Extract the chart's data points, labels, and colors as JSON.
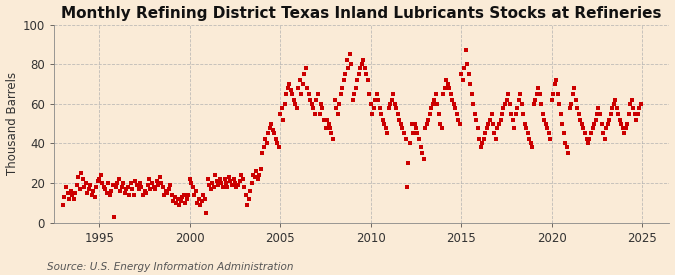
{
  "title": "Monthly Refining District Texas Inland Lubricants Stocks at Refineries",
  "ylabel": "Thousand Barrels",
  "source": "Source: U.S. Energy Information Administration",
  "background_color": "#faebd7",
  "scatter_color": "#cc0000",
  "xlim": [
    1992.5,
    2026.5
  ],
  "ylim": [
    0,
    100
  ],
  "yticks": [
    0,
    20,
    40,
    60,
    80,
    100
  ],
  "xticks": [
    1995,
    2000,
    2005,
    2010,
    2015,
    2020,
    2025
  ],
  "title_fontsize": 11,
  "label_fontsize": 8.5,
  "source_fontsize": 7.5,
  "marker_size": 12,
  "data": {
    "x": [
      1993.0,
      1993.08,
      1993.17,
      1993.25,
      1993.33,
      1993.42,
      1993.5,
      1993.58,
      1993.67,
      1993.75,
      1993.83,
      1993.92,
      1994.0,
      1994.08,
      1994.17,
      1994.25,
      1994.33,
      1994.42,
      1994.5,
      1994.58,
      1994.67,
      1994.75,
      1994.83,
      1994.92,
      1995.0,
      1995.08,
      1995.17,
      1995.25,
      1995.33,
      1995.42,
      1995.5,
      1995.58,
      1995.67,
      1995.75,
      1995.83,
      1995.92,
      1996.0,
      1996.08,
      1996.17,
      1996.25,
      1996.33,
      1996.42,
      1996.5,
      1996.58,
      1996.67,
      1996.75,
      1996.83,
      1996.92,
      1997.0,
      1997.08,
      1997.17,
      1997.25,
      1997.33,
      1997.42,
      1997.5,
      1997.58,
      1997.67,
      1997.75,
      1997.83,
      1997.92,
      1998.0,
      1998.08,
      1998.17,
      1998.25,
      1998.33,
      1998.42,
      1998.5,
      1998.58,
      1998.67,
      1998.75,
      1998.83,
      1998.92,
      1999.0,
      1999.08,
      1999.17,
      1999.25,
      1999.33,
      1999.42,
      1999.5,
      1999.58,
      1999.67,
      1999.75,
      1999.83,
      1999.92,
      2000.0,
      2000.08,
      2000.17,
      2000.25,
      2000.33,
      2000.42,
      2000.5,
      2000.58,
      2000.67,
      2000.75,
      2000.83,
      2000.92,
      2001.0,
      2001.08,
      2001.17,
      2001.25,
      2001.33,
      2001.42,
      2001.5,
      2001.58,
      2001.67,
      2001.75,
      2001.83,
      2001.92,
      2002.0,
      2002.08,
      2002.17,
      2002.25,
      2002.33,
      2002.42,
      2002.5,
      2002.58,
      2002.67,
      2002.75,
      2002.83,
      2002.92,
      2003.0,
      2003.08,
      2003.17,
      2003.25,
      2003.33,
      2003.42,
      2003.5,
      2003.58,
      2003.67,
      2003.75,
      2003.83,
      2003.92,
      2004.0,
      2004.08,
      2004.17,
      2004.25,
      2004.33,
      2004.42,
      2004.5,
      2004.58,
      2004.67,
      2004.75,
      2004.83,
      2004.92,
      2005.0,
      2005.08,
      2005.17,
      2005.25,
      2005.33,
      2005.42,
      2005.5,
      2005.58,
      2005.67,
      2005.75,
      2005.83,
      2005.92,
      2006.0,
      2006.08,
      2006.17,
      2006.25,
      2006.33,
      2006.42,
      2006.5,
      2006.58,
      2006.67,
      2006.75,
      2006.83,
      2006.92,
      2007.0,
      2007.08,
      2007.17,
      2007.25,
      2007.33,
      2007.42,
      2007.5,
      2007.58,
      2007.67,
      2007.75,
      2007.83,
      2007.92,
      2008.0,
      2008.08,
      2008.17,
      2008.25,
      2008.33,
      2008.42,
      2008.5,
      2008.58,
      2008.67,
      2008.75,
      2008.83,
      2008.92,
      2009.0,
      2009.08,
      2009.17,
      2009.25,
      2009.33,
      2009.42,
      2009.5,
      2009.58,
      2009.67,
      2009.75,
      2009.83,
      2009.92,
      2010.0,
      2010.08,
      2010.17,
      2010.25,
      2010.33,
      2010.42,
      2010.5,
      2010.58,
      2010.67,
      2010.75,
      2010.83,
      2010.92,
      2011.0,
      2011.08,
      2011.17,
      2011.25,
      2011.33,
      2011.42,
      2011.5,
      2011.58,
      2011.67,
      2011.75,
      2011.83,
      2011.92,
      2012.0,
      2012.08,
      2012.17,
      2012.25,
      2012.33,
      2012.42,
      2012.5,
      2012.58,
      2012.67,
      2012.75,
      2012.83,
      2012.92,
      2013.0,
      2013.08,
      2013.17,
      2013.25,
      2013.33,
      2013.42,
      2013.5,
      2013.58,
      2013.67,
      2013.75,
      2013.83,
      2013.92,
      2014.0,
      2014.08,
      2014.17,
      2014.25,
      2014.33,
      2014.42,
      2014.5,
      2014.58,
      2014.67,
      2014.75,
      2014.83,
      2014.92,
      2015.0,
      2015.08,
      2015.17,
      2015.25,
      2015.33,
      2015.42,
      2015.5,
      2015.58,
      2015.67,
      2015.75,
      2015.83,
      2015.92,
      2016.0,
      2016.08,
      2016.17,
      2016.25,
      2016.33,
      2016.42,
      2016.5,
      2016.58,
      2016.67,
      2016.75,
      2016.83,
      2016.92,
      2017.0,
      2017.08,
      2017.17,
      2017.25,
      2017.33,
      2017.42,
      2017.5,
      2017.58,
      2017.67,
      2017.75,
      2017.83,
      2017.92,
      2018.0,
      2018.08,
      2018.17,
      2018.25,
      2018.33,
      2018.42,
      2018.5,
      2018.58,
      2018.67,
      2018.75,
      2018.83,
      2018.92,
      2019.0,
      2019.08,
      2019.17,
      2019.25,
      2019.33,
      2019.42,
      2019.5,
      2019.58,
      2019.67,
      2019.75,
      2019.83,
      2019.92,
      2020.0,
      2020.08,
      2020.17,
      2020.25,
      2020.33,
      2020.42,
      2020.5,
      2020.58,
      2020.67,
      2020.75,
      2020.83,
      2020.92,
      2021.0,
      2021.08,
      2021.17,
      2021.25,
      2021.33,
      2021.42,
      2021.5,
      2021.58,
      2021.67,
      2021.75,
      2021.83,
      2021.92,
      2022.0,
      2022.08,
      2022.17,
      2022.25,
      2022.33,
      2022.42,
      2022.5,
      2022.58,
      2022.67,
      2022.75,
      2022.83,
      2022.92,
      2023.0,
      2023.08,
      2023.17,
      2023.25,
      2023.33,
      2023.42,
      2023.5,
      2023.58,
      2023.67,
      2023.75,
      2023.83,
      2023.92,
      2024.0,
      2024.08,
      2024.17,
      2024.25,
      2024.33,
      2024.42,
      2024.5,
      2024.58,
      2024.67,
      2024.75,
      2024.83,
      2024.92
    ],
    "y": [
      9,
      13,
      18,
      15,
      12,
      16,
      14,
      12,
      15,
      19,
      23,
      17,
      25,
      22,
      18,
      20,
      15,
      17,
      19,
      14,
      16,
      13,
      18,
      21,
      22,
      24,
      20,
      18,
      17,
      15,
      20,
      14,
      16,
      19,
      3,
      18,
      20,
      22,
      16,
      18,
      20,
      15,
      17,
      18,
      14,
      20,
      17,
      14,
      21,
      19,
      17,
      20,
      18,
      14,
      16,
      15,
      19,
      22,
      17,
      20,
      18,
      17,
      21,
      19,
      23,
      20,
      18,
      14,
      16,
      15,
      17,
      19,
      14,
      11,
      13,
      10,
      12,
      9,
      11,
      13,
      14,
      10,
      12,
      14,
      22,
      20,
      18,
      14,
      16,
      10,
      12,
      9,
      11,
      14,
      12,
      5,
      22,
      19,
      17,
      20,
      18,
      24,
      21,
      19,
      22,
      20,
      18,
      22,
      20,
      18,
      23,
      21,
      19,
      22,
      20,
      18,
      19,
      21,
      24,
      22,
      18,
      14,
      9,
      12,
      16,
      20,
      24,
      23,
      26,
      22,
      24,
      27,
      35,
      38,
      42,
      40,
      45,
      48,
      50,
      47,
      45,
      42,
      40,
      38,
      55,
      58,
      52,
      60,
      65,
      68,
      70,
      67,
      65,
      62,
      60,
      58,
      68,
      72,
      65,
      70,
      75,
      78,
      68,
      65,
      62,
      60,
      58,
      55,
      62,
      65,
      55,
      60,
      58,
      52,
      48,
      52,
      50,
      48,
      45,
      42,
      62,
      58,
      55,
      60,
      65,
      68,
      72,
      75,
      82,
      78,
      85,
      80,
      62,
      65,
      68,
      72,
      75,
      78,
      80,
      82,
      78,
      75,
      72,
      65,
      60,
      55,
      58,
      62,
      65,
      62,
      58,
      55,
      52,
      50,
      48,
      45,
      58,
      60,
      62,
      65,
      60,
      58,
      55,
      52,
      50,
      48,
      45,
      42,
      18,
      30,
      40,
      50,
      45,
      50,
      48,
      45,
      42,
      38,
      35,
      32,
      48,
      50,
      52,
      55,
      58,
      60,
      62,
      65,
      60,
      55,
      50,
      48,
      65,
      68,
      72,
      70,
      68,
      65,
      62,
      60,
      58,
      55,
      52,
      50,
      75,
      72,
      78,
      87,
      80,
      75,
      70,
      65,
      60,
      55,
      52,
      48,
      42,
      38,
      40,
      42,
      45,
      48,
      50,
      52,
      55,
      50,
      45,
      42,
      48,
      50,
      52,
      55,
      58,
      60,
      62,
      65,
      60,
      55,
      52,
      48,
      55,
      58,
      62,
      65,
      60,
      55,
      50,
      48,
      45,
      42,
      40,
      38,
      60,
      62,
      65,
      68,
      65,
      60,
      55,
      52,
      50,
      48,
      45,
      42,
      62,
      65,
      70,
      72,
      65,
      60,
      55,
      50,
      45,
      40,
      38,
      35,
      58,
      60,
      65,
      68,
      62,
      58,
      55,
      52,
      50,
      48,
      45,
      42,
      40,
      42,
      45,
      48,
      50,
      52,
      55,
      58,
      55,
      50,
      45,
      42,
      48,
      50,
      52,
      55,
      58,
      60,
      62,
      58,
      55,
      52,
      50,
      48,
      45,
      48,
      50,
      55,
      60,
      62,
      58,
      55,
      52,
      55,
      58,
      60
    ]
  }
}
